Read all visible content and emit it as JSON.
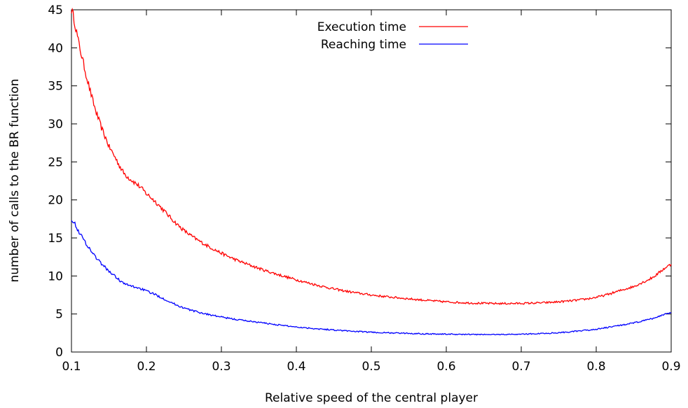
{
  "chart_data": {
    "type": "line",
    "xlabel": "Relative speed of the central player",
    "ylabel": "number of calls to the BR function",
    "xlim": [
      0.1,
      0.9
    ],
    "ylim": [
      0,
      45
    ],
    "xticks": [
      0.1,
      0.2,
      0.3,
      0.4,
      0.5,
      0.6,
      0.7,
      0.8,
      0.9
    ],
    "xtick_labels": [
      "0.1",
      "0.2",
      "0.3",
      "0.4",
      "0.5",
      "0.6",
      "0.7",
      "0.8",
      "0.9"
    ],
    "yticks": [
      0,
      5,
      10,
      15,
      20,
      25,
      30,
      35,
      40,
      45
    ],
    "ytick_labels": [
      "0",
      "5",
      "10",
      "15",
      "20",
      "25",
      "30",
      "35",
      "40",
      "45"
    ],
    "grid": false,
    "legend_position": "top-center",
    "series": [
      {
        "name": "Execution time",
        "color": "#ff0000",
        "x": [
          0.1,
          0.11,
          0.12,
          0.13,
          0.14,
          0.15,
          0.17,
          0.2,
          0.25,
          0.3,
          0.35,
          0.4,
          0.45,
          0.5,
          0.55,
          0.6,
          0.65,
          0.7,
          0.75,
          0.8,
          0.85,
          0.875,
          0.9
        ],
        "y": [
          45.0,
          40.5,
          36.3,
          32.5,
          29.5,
          27.0,
          23.5,
          20.8,
          16.0,
          13.0,
          11.0,
          9.5,
          8.3,
          7.5,
          7.0,
          6.6,
          6.4,
          6.4,
          6.6,
          7.2,
          8.6,
          9.8,
          11.5
        ]
      },
      {
        "name": "Reaching time",
        "color": "#0000ff",
        "x": [
          0.1,
          0.11,
          0.12,
          0.13,
          0.14,
          0.15,
          0.17,
          0.2,
          0.25,
          0.3,
          0.35,
          0.4,
          0.45,
          0.5,
          0.55,
          0.6,
          0.65,
          0.7,
          0.75,
          0.8,
          0.85,
          0.875,
          0.9
        ],
        "y": [
          17.5,
          15.8,
          14.2,
          12.8,
          11.6,
          10.6,
          9.0,
          8.0,
          5.8,
          4.6,
          3.9,
          3.3,
          2.9,
          2.6,
          2.45,
          2.35,
          2.3,
          2.35,
          2.55,
          3.0,
          3.8,
          4.4,
          5.2
        ]
      }
    ]
  }
}
